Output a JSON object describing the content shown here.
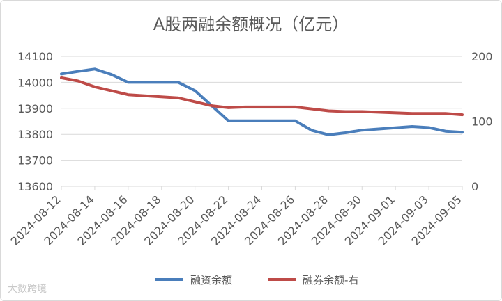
{
  "chart_data": {
    "type": "line",
    "title": "A股两融余额概况（亿元）",
    "x": [
      "2024-08-12",
      "2024-08-13",
      "2024-08-14",
      "2024-08-15",
      "2024-08-16",
      "2024-08-19",
      "2024-08-20",
      "2024-08-21",
      "2024-08-22",
      "2024-08-23",
      "2024-08-26",
      "2024-08-27",
      "2024-08-28",
      "2024-08-29",
      "2024-08-30",
      "2024-09-02",
      "2024-09-03",
      "2024-09-04",
      "2024-09-05"
    ],
    "x_tick_labels": [
      "2024-08-12",
      "2024-08-14",
      "2024-08-16",
      "2024-08-18",
      "2024-08-20",
      "2024-08-22",
      "2024-08-24",
      "2024-08-26",
      "2024-08-28",
      "2024-08-30",
      "2024-09-01",
      "2024-09-03",
      "2024-09-05"
    ],
    "y_left": {
      "ylim": [
        13600,
        14100
      ],
      "ticks": [
        13600,
        13700,
        13800,
        13900,
        14000,
        14100
      ]
    },
    "y_right": {
      "ylim": [
        0,
        200
      ],
      "ticks": [
        0,
        100,
        200
      ]
    },
    "series": [
      {
        "name": "融资余额",
        "axis": "left",
        "color": "#4a7ebb",
        "values": [
          14032,
          14042,
          14051,
          14030,
          14000,
          14000,
          13968,
          13910,
          13852,
          13852,
          13852,
          13815,
          13798,
          13806,
          13816,
          13830,
          13826,
          13812,
          13808
        ]
      },
      {
        "name": "融券余额-右",
        "axis": "right",
        "color": "#be4b48",
        "values": [
          167,
          162,
          153,
          147,
          141,
          136,
          130,
          124,
          121,
          122,
          122,
          119,
          116,
          115,
          115,
          112,
          112,
          112,
          110
        ]
      }
    ],
    "legend": "bottom",
    "grid": true
  },
  "watermark": "大数跨境",
  "colors": {
    "grid": "#d9d9d9",
    "text": "#595959"
  }
}
